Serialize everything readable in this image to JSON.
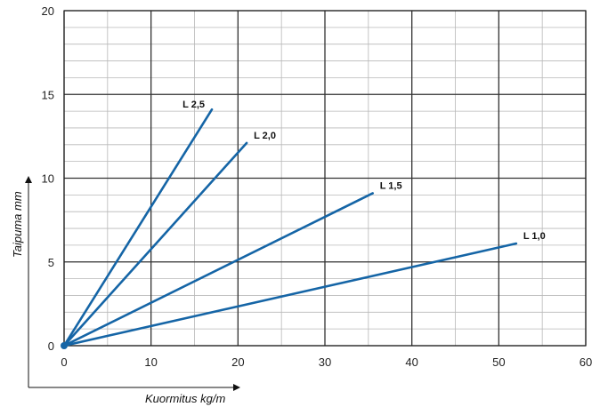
{
  "chart_data": {
    "type": "line",
    "title": "",
    "xlabel": "Kuormitus kg/m",
    "ylabel": "Taipuma mm",
    "xlim": [
      0,
      60
    ],
    "ylim": [
      0,
      20
    ],
    "x_ticks": [
      "0",
      "10",
      "20",
      "30",
      "40",
      "50",
      "60"
    ],
    "y_ticks": [
      "0",
      "5",
      "10",
      "15",
      "20"
    ],
    "grid": true,
    "minor_grid": {
      "x_step": 5,
      "y_step": 1
    },
    "line_color": "#1565a6",
    "series": [
      {
        "name": "L 2,5",
        "points": [
          [
            0,
            0
          ],
          [
            17,
            14.1
          ]
        ]
      },
      {
        "name": "L 2,0",
        "points": [
          [
            0,
            0
          ],
          [
            21,
            12.1
          ]
        ]
      },
      {
        "name": "L 1,5",
        "points": [
          [
            0,
            0
          ],
          [
            35.5,
            9.1
          ]
        ]
      },
      {
        "name": "L 1,0",
        "points": [
          [
            0,
            0
          ],
          [
            52,
            6.1
          ]
        ]
      }
    ]
  }
}
